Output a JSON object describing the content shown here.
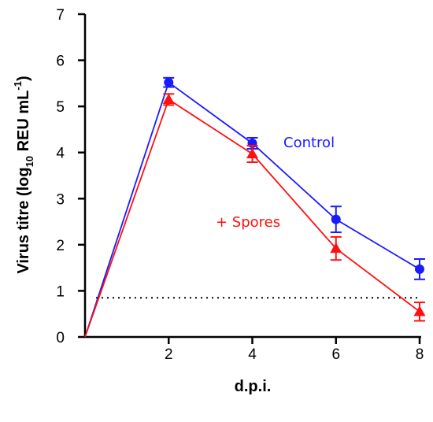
{
  "chart_data": {
    "type": "line",
    "xlabel": "d.p.i.",
    "ylabel": {
      "prefix": "Virus titre (log",
      "sub": "10",
      "middle": " REU mL",
      "sup": "-1",
      "suffix": ")"
    },
    "xlim": [
      0,
      8
    ],
    "ylim": [
      0,
      7
    ],
    "x_ticks": [
      2,
      4,
      6,
      8
    ],
    "y_ticks": [
      0,
      1,
      2,
      3,
      4,
      5,
      6,
      7
    ],
    "detection_limit": 0.85,
    "series": [
      {
        "name": "Control",
        "color": "#1a1aff",
        "marker": "circle",
        "x": [
          0,
          2,
          4,
          6,
          8
        ],
        "y": [
          0,
          5.52,
          4.2,
          2.55,
          1.47
        ],
        "err": [
          0,
          0.1,
          0.12,
          0.28,
          0.22
        ]
      },
      {
        "name": "+ Spores",
        "color": "#ff1010",
        "marker": "triangle",
        "x": [
          0,
          2,
          4,
          6,
          8
        ],
        "y": [
          0,
          5.15,
          3.97,
          1.92,
          0.55
        ],
        "err": [
          0,
          0.12,
          0.18,
          0.25,
          0.2
        ]
      }
    ]
  }
}
